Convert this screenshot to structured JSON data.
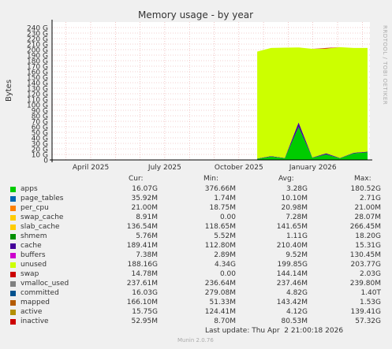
{
  "chart_data": {
    "type": "area",
    "title": "Memory usage - by year",
    "ylabel": "Bytes",
    "y_ticks": [
      "0",
      "10 G",
      "20 G",
      "30 G",
      "40 G",
      "50 G",
      "60 G",
      "70 G",
      "80 G",
      "90 G",
      "100 G",
      "110 G",
      "120 G",
      "130 G",
      "140 G",
      "150 G",
      "160 G",
      "170 G",
      "180 G",
      "190 G",
      "200 G",
      "210 G",
      "220 G",
      "230 G",
      "240 G"
    ],
    "ylim": [
      0,
      250
    ],
    "x_ticks": [
      "April 2025",
      "July 2025",
      "October 2025",
      "January 2026"
    ],
    "data_start_month": "2025-11",
    "series": [
      {
        "name": "apps",
        "color": "#00cc00",
        "values": [
          2,
          6,
          3,
          60,
          4,
          10,
          3,
          12,
          14
        ]
      },
      {
        "name": "cache",
        "color": "#440099",
        "values": [
          0.5,
          1,
          0.5,
          8,
          0.5,
          2,
          0.5,
          1,
          1
        ]
      },
      {
        "name": "unused",
        "color": "#ccff00",
        "values": [
          194,
          196,
          200,
          136,
          197,
          190,
          201,
          190,
          188
        ]
      },
      {
        "name": "inactive",
        "color": "#cc0000",
        "values": [
          0,
          0,
          0,
          0,
          0,
          1,
          0,
          0,
          0
        ]
      }
    ]
  },
  "legend": {
    "headers": {
      "cur": "Cur:",
      "min": "Min:",
      "avg": "Avg:",
      "max": "Max:"
    },
    "rows": [
      {
        "name": "apps",
        "color": "#00cc00",
        "cur": "16.07G",
        "min": "376.66M",
        "avg": "3.28G",
        "max": "180.52G"
      },
      {
        "name": "page_tables",
        "color": "#0066b3",
        "cur": "35.92M",
        "min": "1.74M",
        "avg": "10.10M",
        "max": "2.71G"
      },
      {
        "name": "per_cpu",
        "color": "#ff8000",
        "cur": "21.00M",
        "min": "18.75M",
        "avg": "20.98M",
        "max": "21.00M"
      },
      {
        "name": "swap_cache",
        "color": "#ffcc00",
        "cur": "8.91M",
        "min": "0.00",
        "avg": "7.28M",
        "max": "28.07M"
      },
      {
        "name": "slab_cache",
        "color": "#ffcc00",
        "cur": "136.54M",
        "min": "118.65M",
        "avg": "141.65M",
        "max": "266.45M"
      },
      {
        "name": "shmem",
        "color": "#008f00",
        "cur": "5.76M",
        "min": "5.52M",
        "avg": "1.11G",
        "max": "18.20G"
      },
      {
        "name": "cache",
        "color": "#440099",
        "cur": "189.41M",
        "min": "112.80M",
        "avg": "210.40M",
        "max": "15.31G"
      },
      {
        "name": "buffers",
        "color": "#cc00cc",
        "cur": "7.38M",
        "min": "2.89M",
        "avg": "9.52M",
        "max": "130.45M"
      },
      {
        "name": "unused",
        "color": "#ccff00",
        "cur": "188.16G",
        "min": "4.34G",
        "avg": "199.85G",
        "max": "203.77G"
      },
      {
        "name": "swap",
        "color": "#cc0000",
        "cur": "14.78M",
        "min": "0.00",
        "avg": "144.14M",
        "max": "2.03G"
      },
      {
        "name": "vmalloc_used",
        "color": "#808080",
        "cur": "237.61M",
        "min": "236.64M",
        "avg": "237.46M",
        "max": "239.80M"
      },
      {
        "name": "committed",
        "color": "#00528f",
        "cur": "16.03G",
        "min": "279.08M",
        "avg": "4.82G",
        "max": "1.40T"
      },
      {
        "name": "mapped",
        "color": "#b35a00",
        "cur": "166.10M",
        "min": "51.33M",
        "avg": "143.42M",
        "max": "1.53G"
      },
      {
        "name": "active",
        "color": "#b38f00",
        "cur": "15.75G",
        "min": "124.41M",
        "avg": "4.12G",
        "max": "139.41G"
      },
      {
        "name": "inactive",
        "color": "#cc0000",
        "cur": "52.95M",
        "min": "8.70M",
        "avg": "80.53M",
        "max": "57.32G"
      }
    ]
  },
  "footer": {
    "last_update": "Last update: Thu Apr  2 21:00:18 2026",
    "munin_version": "Munin 2.0.76",
    "rrdtool_label": "RRDTOOL / TOBI OETIKER"
  }
}
